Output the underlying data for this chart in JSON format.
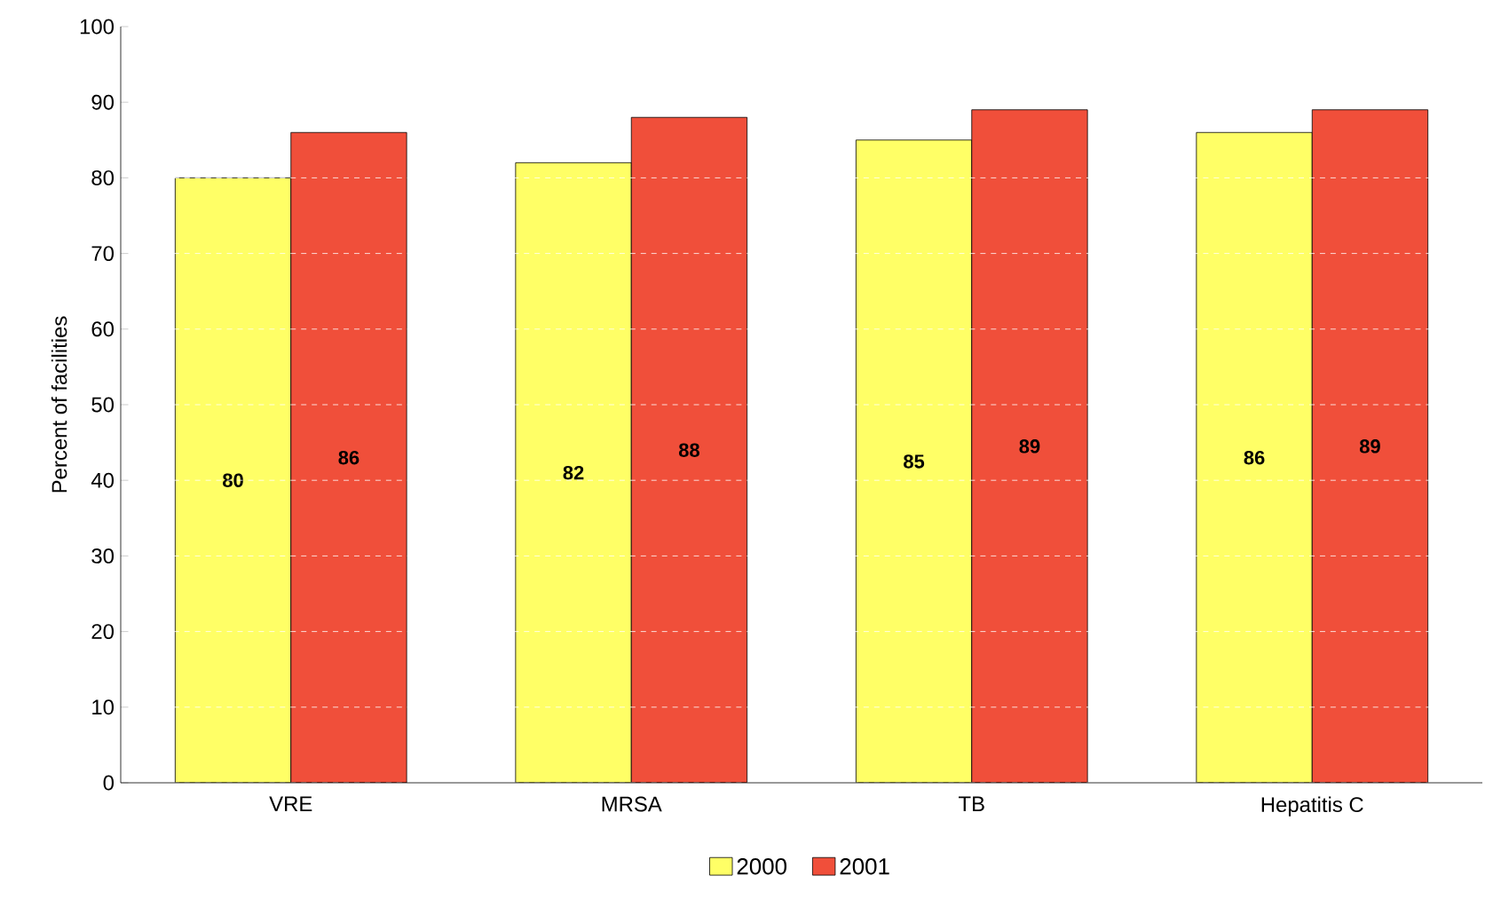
{
  "chart_data": {
    "type": "bar",
    "ylabel": "Percent  of facilities",
    "categories": [
      "VRE",
      "MRSA",
      "TB",
      "Hepatitis C"
    ],
    "series": [
      {
        "name": "2000",
        "color": "#ffff66",
        "values": [
          80,
          82,
          85,
          86
        ]
      },
      {
        "name": "2001",
        "color": "#f04f3a",
        "values": [
          86,
          88,
          89,
          89
        ]
      }
    ],
    "ylim": [
      0,
      100
    ],
    "yticks": [
      0,
      10,
      20,
      30,
      40,
      50,
      60,
      70,
      80,
      90,
      100
    ],
    "grid": "y",
    "legend": "bottom",
    "data_labels": true
  }
}
